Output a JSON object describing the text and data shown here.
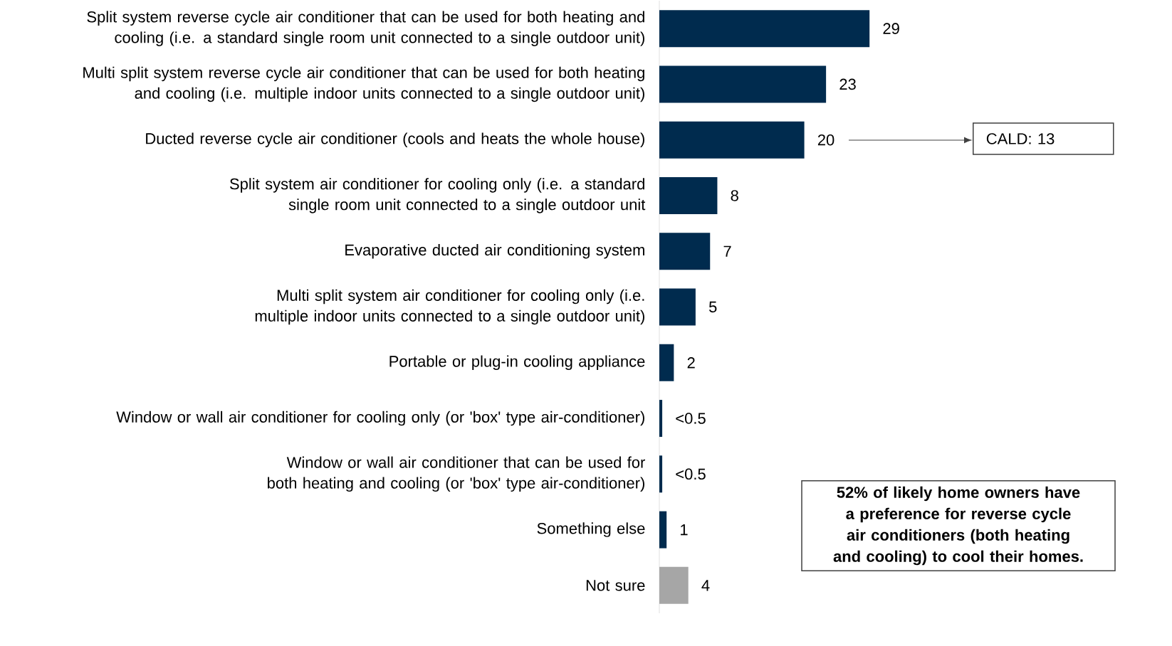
{
  "chart_data": {
    "type": "bar",
    "orientation": "horizontal",
    "categories": [
      "Split system reverse cycle air conditioner that can be used for both heating and cooling (i.e. a standard single room unit connected to a single outdoor unit)",
      "Multi split system reverse cycle air conditioner that can be used for both heating and cooling (i.e. multiple indoor units connected to a single outdoor unit)",
      "Ducted reverse cycle air conditioner (cools and heats the whole house)",
      "Split system air conditioner for cooling only (i.e. a standard single room unit connected to a single outdoor unit",
      "Evaporative ducted air conditioning system",
      "Multi split system air conditioner for cooling only (i.e. multiple indoor units connected to a single outdoor unit)",
      "Portable or plug-in cooling appliance",
      "Window or wall air conditioner for cooling only (or 'box' type air-conditioner)",
      "Window or wall air conditioner that can be used for both heating and cooling (or 'box' type air-conditioner)",
      "Something else",
      "Not sure"
    ],
    "values": [
      29,
      23,
      20,
      8,
      7,
      5,
      2,
      0.4,
      0.4,
      1,
      4
    ],
    "value_labels": [
      "29",
      "23",
      "20",
      "8",
      "7",
      "5",
      "2",
      "<0.5",
      "<0.5",
      "1",
      "4"
    ],
    "colors": [
      "#002b4e",
      "#002b4e",
      "#002b4e",
      "#002b4e",
      "#002b4e",
      "#002b4e",
      "#002b4e",
      "#002b4e",
      "#002b4e",
      "#002b4e",
      "#a6a6a6"
    ],
    "tick_labels": "y",
    "annotations": [
      "CALD: 13",
      "52% of likely home owners have a preference for reverse cycle air conditioners (both heating and cooling) to cool their homes."
    ]
  }
}
